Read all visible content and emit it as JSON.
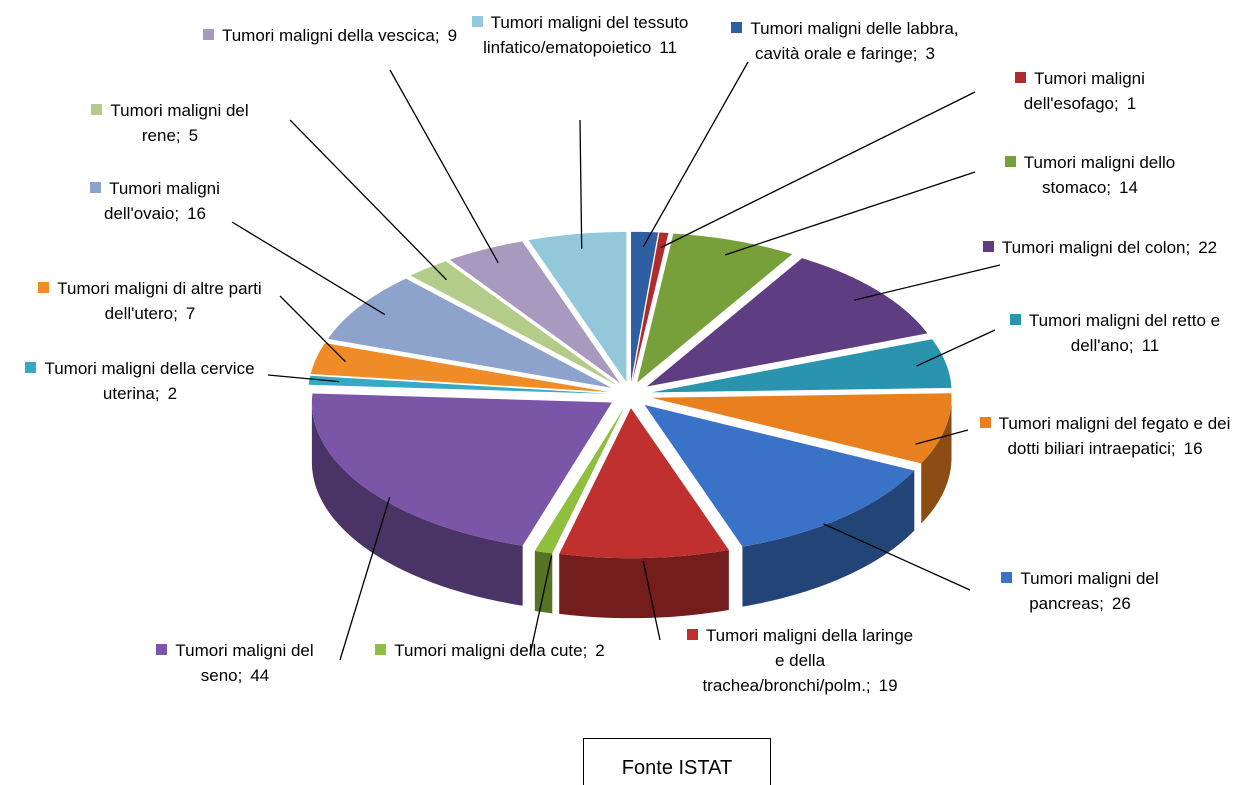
{
  "chart_data": {
    "type": "pie3d",
    "source": "Fonte ISTAT",
    "categories": [
      "Tumori maligni delle labbra, cavità orale e faringe;",
      "Tumori maligni dell'esofago;",
      "Tumori maligni dello stomaco;",
      "Tumori maligni del colon;",
      "Tumori maligni del retto e dell'ano;",
      "Tumori maligni del fegato e dei dotti biliari intraepatici;",
      "Tumori maligni del pancreas;",
      "Tumori maligni della laringe e della trachea/bronchi/polm.;",
      "Tumori maligni della cute;",
      "Tumori maligni del seno;",
      "Tumori maligni della cervice uterina;",
      "Tumori maligni di altre parti dell'utero;",
      "Tumori maligni dell'ovaio;",
      "Tumori maligni del rene;",
      "Tumori maligni della vescica;",
      "Tumori maligni del tessuto linfatico/ematopoietico"
    ],
    "values": [
      3,
      1,
      14,
      22,
      11,
      16,
      26,
      19,
      2,
      44,
      2,
      7,
      16,
      5,
      9,
      11
    ],
    "colors": [
      "#2e5fa3",
      "#b22b2b",
      "#77a03a",
      "#5e3d83",
      "#2a93ad",
      "#e8801f",
      "#3a72c7",
      "#c0302e",
      "#8fbf3c",
      "#7b56a8",
      "#35a9c5",
      "#f08c28",
      "#8ea3cc",
      "#b3cc8a",
      "#a89abf",
      "#93c7da"
    ]
  }
}
